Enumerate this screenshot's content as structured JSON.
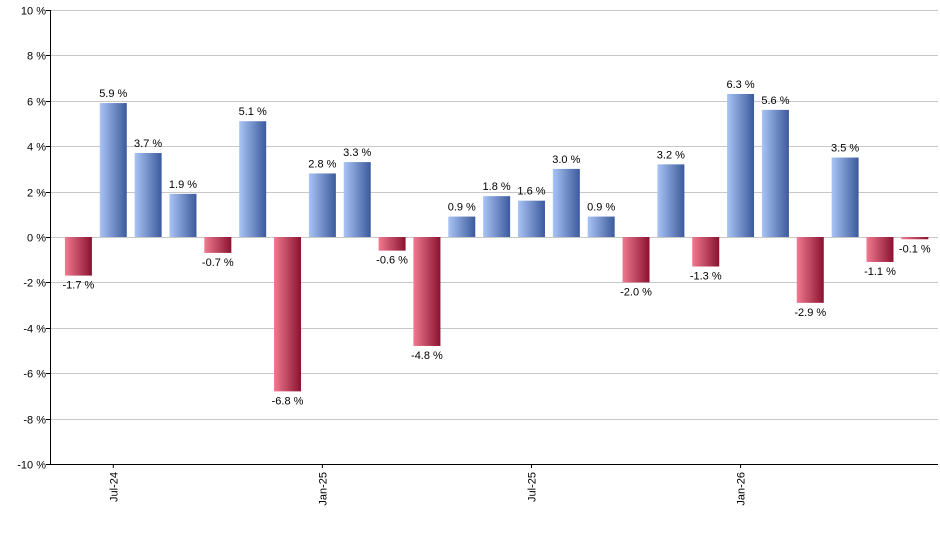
{
  "chart_data": {
    "type": "bar",
    "y_unit_suffix": " %",
    "ylim": [
      -10,
      10
    ],
    "y_ticks": [
      10,
      8,
      6,
      4,
      2,
      0,
      -2,
      -4,
      -6,
      -8,
      -10
    ],
    "y_tick_labels": [
      "10 %",
      "8 %",
      "6 %",
      "4 %",
      "2 %",
      "0 %",
      "-2 %",
      "-4 %",
      "-6 %",
      "-8 %",
      "-10 %"
    ],
    "grid": true,
    "x_tick_labels": [
      {
        "label": "Jul-24",
        "bar_index": 1
      },
      {
        "label": "Jan-25",
        "bar_index": 7
      },
      {
        "label": "Jul-25",
        "bar_index": 13
      },
      {
        "label": "Jan-26",
        "bar_index": 19
      }
    ],
    "values": [
      -1.7,
      5.9,
      3.7,
      1.9,
      -0.7,
      5.1,
      -6.8,
      2.8,
      3.3,
      -0.6,
      -4.8,
      0.9,
      1.8,
      1.6,
      3.0,
      0.9,
      -2.0,
      3.2,
      -1.3,
      6.3,
      5.6,
      -2.9,
      3.5,
      -1.1,
      -0.1
    ],
    "labels": [
      "-1.7 %",
      "5.9 %",
      "3.7 %",
      "1.9 %",
      "-0.7 %",
      "5.1 %",
      "-6.8 %",
      "2.8 %",
      "3.3 %",
      "-0.6 %",
      "-4.8 %",
      "0.9 %",
      "1.8 %",
      "1.6 %",
      "3.0 %",
      "0.9 %",
      "-2.0 %",
      "3.2 %",
      "-1.3 %",
      "6.3 %",
      "5.6 %",
      "-2.9 %",
      "3.5 %",
      "-1.1 %",
      "-0.1 %"
    ],
    "colors": {
      "positive_light": "#a9c4f5",
      "positive_dark": "#3c5a9c",
      "negative_light": "#f07a90",
      "negative_dark": "#8a1230",
      "grid": "#c8c8c8",
      "axis": "#000000"
    }
  }
}
